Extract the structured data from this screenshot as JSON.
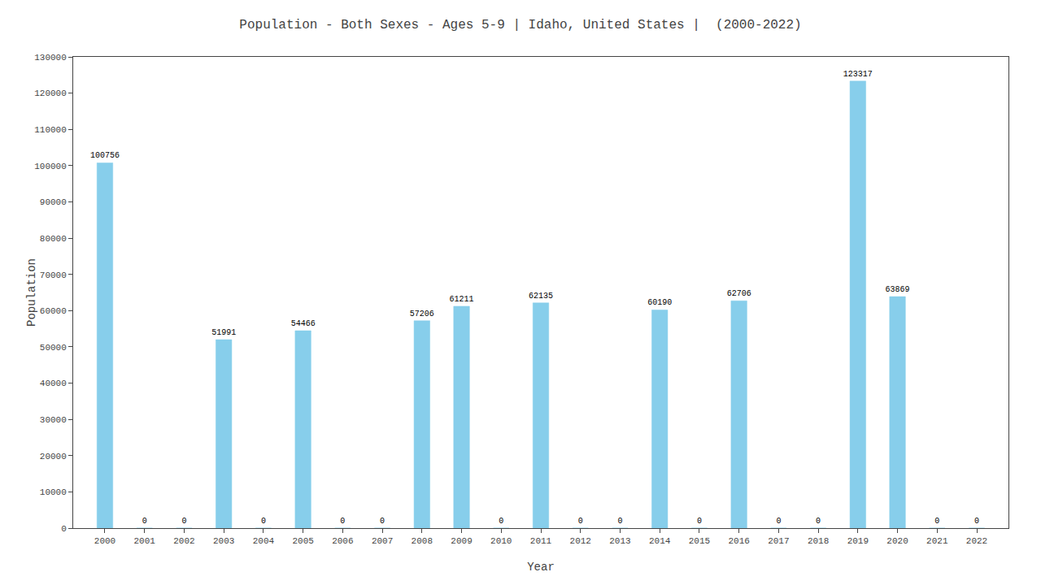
{
  "chart_data": {
    "type": "bar",
    "title": "Population - Both Sexes - Ages 5-9 | Idaho, United States |  (2000-2022)",
    "xlabel": "Year",
    "ylabel": "Population",
    "x": [
      2000,
      2001,
      2002,
      2003,
      2004,
      2005,
      2006,
      2007,
      2008,
      2009,
      2010,
      2011,
      2012,
      2013,
      2014,
      2015,
      2016,
      2017,
      2018,
      2019,
      2020,
      2021,
      2022
    ],
    "values": [
      100756,
      0,
      0,
      51991,
      0,
      54466,
      0,
      0,
      57206,
      61211,
      0,
      62135,
      0,
      0,
      60190,
      0,
      62706,
      0,
      0,
      123317,
      63869,
      0,
      0
    ],
    "color": "#87CEEB",
    "xlim": [
      1999.2,
      2022.8
    ],
    "xticks": [
      2000,
      2001,
      2002,
      2003,
      2004,
      2005,
      2006,
      2007,
      2008,
      2009,
      2010,
      2011,
      2012,
      2013,
      2014,
      2015,
      2016,
      2017,
      2018,
      2019,
      2020,
      2021,
      2022
    ],
    "ylim": [
      0,
      130000
    ],
    "yticks": [
      0,
      10000,
      20000,
      30000,
      40000,
      50000,
      60000,
      70000,
      80000,
      90000,
      100000,
      110000,
      120000,
      130000
    ],
    "grid": false,
    "data_labels": true
  }
}
